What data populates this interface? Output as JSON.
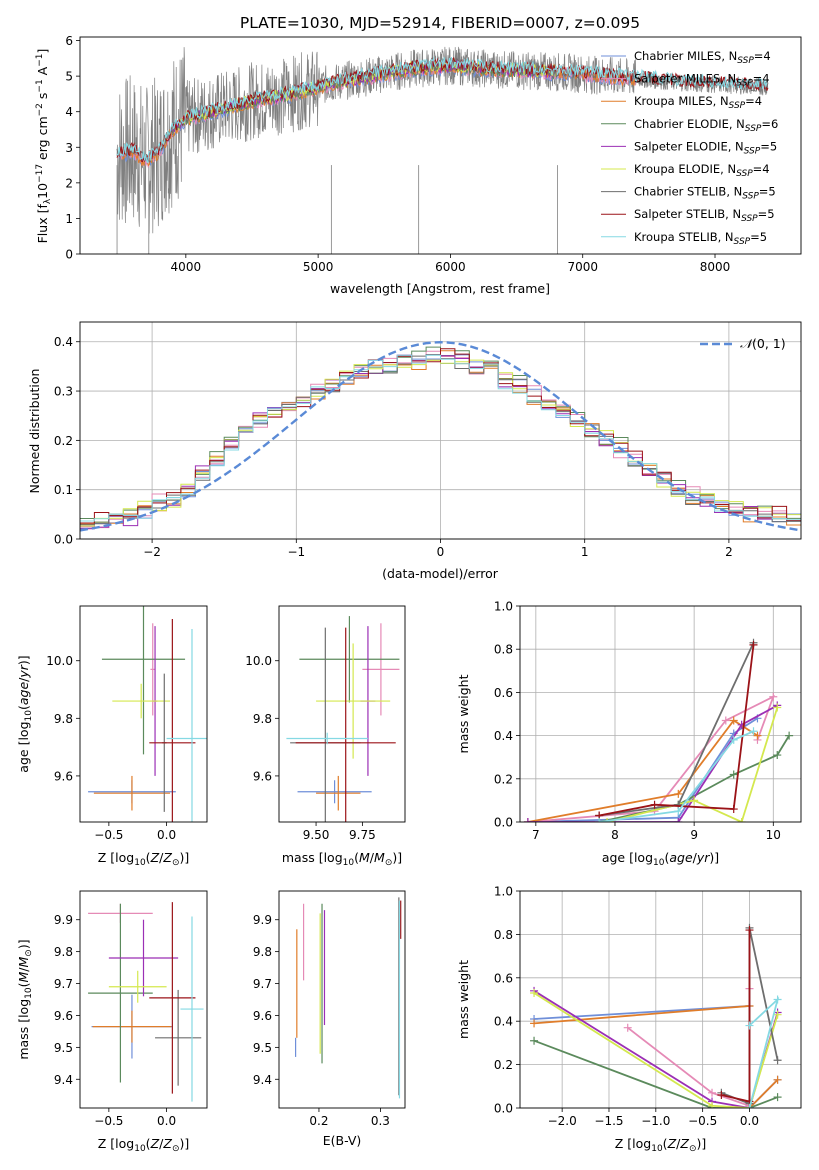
{
  "title": "PLATE=1030, MJD=52914, FIBERID=0007, z=0.095",
  "colors": {
    "Chabrier MILES": "#6f8fd9",
    "Salpeter MILES": "#e58ab6",
    "Kroupa MILES": "#e07d2a",
    "Chabrier ELODIE": "#5b8a5c",
    "Salpeter ELODIE": "#9b2fb5",
    "Kroupa ELODIE": "#d4e84e",
    "Chabrier STELIB": "#6e6e6e",
    "Salpeter STELIB": "#9b1318",
    "Kroupa STELIB": "#85d9e3",
    "data": "#808080",
    "normal_curve": "#5a8ad6"
  },
  "chart_data": [
    {
      "id": "spectrum",
      "type": "line",
      "xlabel": "wavelength [Angstrom, rest frame]",
      "ylabel": "Flux [f_λ10^-17 erg cm^-2 s^-1 A^-1]",
      "xlim": [
        3200,
        8650
      ],
      "ylim": [
        0,
        6.1
      ],
      "xticks": [
        4000,
        5000,
        6000,
        7000,
        8000
      ],
      "yticks": [
        0,
        1,
        2,
        3,
        4,
        5,
        6
      ],
      "grid": false,
      "legend": "right",
      "legend_entries": [
        {
          "name": "Chabrier MILES",
          "nssp": "4"
        },
        {
          "name": "Salpeter MILES",
          "nssp": "4"
        },
        {
          "name": "Kroupa MILES",
          "nssp": "4"
        },
        {
          "name": "Chabrier ELODIE",
          "nssp": "6"
        },
        {
          "name": "Salpeter ELODIE",
          "nssp": "5"
        },
        {
          "name": "Kroupa ELODIE",
          "nssp": "4"
        },
        {
          "name": "Chabrier STELIB",
          "nssp": "5"
        },
        {
          "name": "Salpeter STELIB",
          "nssp": "5"
        },
        {
          "name": "Kroupa STELIB",
          "nssp": "5"
        }
      ],
      "data_range": [
        3480,
        8400
      ],
      "miles_range": [
        3500,
        7410
      ],
      "elodie_range": [
        3900,
        6800
      ],
      "stelib_range": [
        3480,
        8400
      ],
      "continuum": [
        [
          3480,
          2.8
        ],
        [
          3600,
          2.9
        ],
        [
          3700,
          2.6
        ],
        [
          3800,
          2.9
        ],
        [
          3900,
          3.5
        ],
        [
          4000,
          3.8
        ],
        [
          4200,
          4.0
        ],
        [
          4500,
          4.3
        ],
        [
          4800,
          4.5
        ],
        [
          5100,
          4.8
        ],
        [
          5400,
          5.0
        ],
        [
          5700,
          5.2
        ],
        [
          6000,
          5.3
        ],
        [
          6300,
          5.2
        ],
        [
          6600,
          5.15
        ],
        [
          6900,
          5.1
        ],
        [
          7200,
          5.0
        ],
        [
          7500,
          4.9
        ],
        [
          7800,
          4.8
        ],
        [
          8100,
          4.75
        ],
        [
          8400,
          4.7
        ]
      ]
    },
    {
      "id": "residual-histogram",
      "type": "histogram",
      "xlabel": "(data-model)/error",
      "ylabel": "Normed distribution",
      "xlim": [
        -2.5,
        2.5
      ],
      "ylim": [
        0,
        0.44
      ],
      "xticks": [
        -2,
        -1,
        0,
        1,
        2
      ],
      "yticks": [
        0.0,
        0.1,
        0.2,
        0.3,
        0.4
      ],
      "grid": true,
      "legend": "top-right",
      "legend_label": "N(0,1)",
      "bin_edges": [
        -2.5,
        -2.4,
        -2.3,
        -2.2,
        -2.1,
        -2.0,
        -1.9,
        -1.8,
        -1.7,
        -1.6,
        -1.5,
        -1.4,
        -1.3,
        -1.2,
        -1.1,
        -1.0,
        -0.9,
        -0.8,
        -0.7,
        -0.6,
        -0.5,
        -0.4,
        -0.3,
        -0.2,
        -0.1,
        0.0,
        0.1,
        0.2,
        0.3,
        0.4,
        0.5,
        0.6,
        0.7,
        0.8,
        0.9,
        1.0,
        1.1,
        1.2,
        1.3,
        1.4,
        1.5,
        1.6,
        1.7,
        1.8,
        1.9,
        2.0,
        2.1,
        2.2,
        2.3,
        2.4,
        2.5
      ],
      "base_density": [
        0.03,
        0.035,
        0.04,
        0.05,
        0.06,
        0.07,
        0.08,
        0.1,
        0.13,
        0.16,
        0.19,
        0.22,
        0.24,
        0.26,
        0.27,
        0.28,
        0.3,
        0.31,
        0.33,
        0.34,
        0.35,
        0.35,
        0.36,
        0.36,
        0.37,
        0.37,
        0.36,
        0.35,
        0.34,
        0.32,
        0.31,
        0.29,
        0.28,
        0.26,
        0.24,
        0.22,
        0.2,
        0.18,
        0.16,
        0.14,
        0.12,
        0.1,
        0.085,
        0.075,
        0.065,
        0.06,
        0.055,
        0.05,
        0.045,
        0.04
      ],
      "series_offsets": [
        0.0,
        0.012,
        -0.01,
        0.018,
        -0.015,
        0.008,
        -0.006,
        0.015,
        -0.012
      ]
    },
    {
      "id": "age-vs-Z",
      "type": "errorbar",
      "xlabel": "Z [log10(Z/Z⊙)]",
      "ylabel": "age [log10(age/yr)]",
      "xlim": [
        -0.75,
        0.35
      ],
      "ylim": [
        9.44,
        10.19
      ],
      "xticks": [
        -0.5,
        0.0
      ],
      "yticks": [
        9.6,
        9.8,
        10.0
      ],
      "points": [
        {
          "series": "Chabrier MILES",
          "x": -0.3,
          "xerr": 0.38,
          "y": 9.545,
          "yerr": 0.04
        },
        {
          "series": "Salpeter MILES",
          "x": -0.12,
          "xerr": 0.02,
          "y": 9.97,
          "yerr": 0.16
        },
        {
          "series": "Kroupa MILES",
          "x": -0.3,
          "xerr": 0.33,
          "y": 9.54,
          "yerr": 0.06
        },
        {
          "series": "Chabrier ELODIE",
          "x": -0.2,
          "xerr": 0.36,
          "y": 10.005,
          "yerr": 0.33
        },
        {
          "series": "Salpeter ELODIE",
          "x": -0.1,
          "xerr": 0.02,
          "y": 9.86,
          "yerr": 0.26
        },
        {
          "series": "Kroupa ELODIE",
          "x": -0.22,
          "xerr": 0.25,
          "y": 9.86,
          "yerr": 0.06
        },
        {
          "series": "Chabrier STELIB",
          "x": -0.02,
          "xerr": 0.02,
          "y": 9.715,
          "yerr": 0.24
        },
        {
          "series": "Salpeter STELIB",
          "x": 0.05,
          "xerr": 0.2,
          "y": 9.715,
          "yerr": 0.43
        },
        {
          "series": "Kroupa STELIB",
          "x": 0.22,
          "xerr": 0.22,
          "y": 9.73,
          "yerr": 0.38
        }
      ]
    },
    {
      "id": "age-vs-mass",
      "type": "errorbar",
      "xlabel": "mass [log10(M/M⊙)]",
      "ylabel": "",
      "xlim": [
        9.3,
        9.98
      ],
      "ylim": [
        9.44,
        10.19
      ],
      "xticks": [
        9.5,
        9.75
      ],
      "yticks": [
        9.6,
        9.8,
        10.0
      ],
      "points": [
        {
          "series": "Chabrier MILES",
          "x": 9.6,
          "xerr": 0.2,
          "y": 9.545,
          "yerr": 0.04
        },
        {
          "series": "Salpeter MILES",
          "x": 9.85,
          "xerr": 0.1,
          "y": 9.97,
          "yerr": 0.16
        },
        {
          "series": "Kroupa MILES",
          "x": 9.62,
          "xerr": 0.12,
          "y": 9.54,
          "yerr": 0.06
        },
        {
          "series": "Chabrier ELODIE",
          "x": 9.68,
          "xerr": 0.27,
          "y": 10.005,
          "yerr": 0.15
        },
        {
          "series": "Salpeter ELODIE",
          "x": 9.78,
          "xerr": 0.04,
          "y": 9.86,
          "yerr": 0.26
        },
        {
          "series": "Kroupa ELODIE",
          "x": 9.7,
          "xerr": 0.2,
          "y": 9.86,
          "yerr": 0.2
        },
        {
          "series": "Chabrier STELIB",
          "x": 9.55,
          "xerr": 0.19,
          "y": 9.715,
          "yerr": 0.4
        },
        {
          "series": "Salpeter STELIB",
          "x": 9.66,
          "xerr": 0.27,
          "y": 9.715,
          "yerr": 0.4
        },
        {
          "series": "Kroupa STELIB",
          "x": 9.56,
          "xerr": 0.22,
          "y": 9.73,
          "yerr": 0.02
        }
      ]
    },
    {
      "id": "mass-weight-vs-age",
      "type": "line",
      "xlabel": "age [log10(age/yr)]",
      "ylabel": "mass weight",
      "xlim": [
        6.8,
        10.35
      ],
      "ylim": [
        0,
        1.0
      ],
      "xticks": [
        7,
        8,
        9,
        10
      ],
      "yticks": [
        0.0,
        0.2,
        0.4,
        0.6,
        0.8,
        1.0
      ],
      "grid": true,
      "series": [
        {
          "series": "Chabrier MILES",
          "points": [
            [
              6.9,
              0.0
            ],
            [
              8.8,
              0.02
            ],
            [
              9.5,
              0.41
            ],
            [
              9.8,
              0.48
            ]
          ]
        },
        {
          "series": "Salpeter MILES",
          "points": [
            [
              6.9,
              0.0
            ],
            [
              8.5,
              0.05
            ],
            [
              9.4,
              0.47
            ],
            [
              10.0,
              0.58
            ],
            [
              9.8,
              0.38
            ]
          ]
        },
        {
          "series": "Kroupa MILES",
          "points": [
            [
              6.9,
              0.0
            ],
            [
              8.8,
              0.13
            ],
            [
              9.5,
              0.47
            ],
            [
              9.8,
              0.4
            ]
          ]
        },
        {
          "series": "Chabrier ELODIE",
          "points": [
            [
              7.8,
              0.0
            ],
            [
              8.8,
              0.08
            ],
            [
              9.5,
              0.22
            ],
            [
              10.05,
              0.31
            ],
            [
              10.2,
              0.4
            ]
          ]
        },
        {
          "series": "Salpeter ELODIE",
          "points": [
            [
              6.9,
              0.0
            ],
            [
              8.8,
              0.0
            ],
            [
              9.6,
              0.45
            ],
            [
              10.05,
              0.54
            ]
          ]
        },
        {
          "series": "Kroupa ELODIE",
          "points": [
            [
              7.9,
              0.0
            ],
            [
              9.0,
              0.1
            ],
            [
              9.6,
              0.0
            ],
            [
              10.05,
              0.53
            ]
          ]
        },
        {
          "series": "Chabrier STELIB",
          "points": [
            [
              7.8,
              0.03
            ],
            [
              8.8,
              0.08
            ],
            [
              9.75,
              0.83
            ]
          ]
        },
        {
          "series": "Salpeter STELIB",
          "points": [
            [
              7.8,
              0.03
            ],
            [
              8.5,
              0.08
            ],
            [
              9.5,
              0.06
            ],
            [
              9.75,
              0.82
            ]
          ]
        },
        {
          "series": "Kroupa STELIB",
          "points": [
            [
              7.8,
              0.0
            ],
            [
              8.8,
              0.05
            ],
            [
              9.5,
              0.38
            ],
            [
              9.75,
              0.42
            ]
          ]
        }
      ]
    },
    {
      "id": "mass-vs-Z",
      "type": "errorbar",
      "xlabel": "Z [log10(Z/Z⊙)]",
      "ylabel": "mass [log10(M/M⊙)]",
      "xlim": [
        -0.75,
        0.35
      ],
      "ylim": [
        9.31,
        9.99
      ],
      "xticks": [
        -0.5,
        0.0
      ],
      "yticks": [
        9.4,
        9.5,
        9.6,
        9.7,
        9.8,
        9.9
      ],
      "points": [
        {
          "series": "Chabrier MILES",
          "x": -0.3,
          "xerr": 0.35,
          "y": 9.565,
          "yerr": 0.1
        },
        {
          "series": "Salpeter MILES",
          "x": -0.4,
          "xerr": 0.28,
          "y": 9.92,
          "yerr": 0.03
        },
        {
          "series": "Kroupa MILES",
          "x": -0.3,
          "xerr": 0.34,
          "y": 9.565,
          "yerr": 0.05
        },
        {
          "series": "Chabrier ELODIE",
          "x": -0.4,
          "xerr": 0.28,
          "y": 9.67,
          "yerr": 0.28
        },
        {
          "series": "Salpeter ELODIE",
          "x": -0.2,
          "xerr": 0.3,
          "y": 9.78,
          "yerr": 0.12
        },
        {
          "series": "Kroupa ELODIE",
          "x": -0.25,
          "xerr": 0.25,
          "y": 9.69,
          "yerr": 0.05
        },
        {
          "series": "Chabrier STELIB",
          "x": 0.1,
          "xerr": 0.2,
          "y": 9.53,
          "yerr": 0.15
        },
        {
          "series": "Salpeter STELIB",
          "x": 0.05,
          "xerr": 0.2,
          "y": 9.655,
          "yerr": 0.3
        },
        {
          "series": "Kroupa STELIB",
          "x": 0.22,
          "xerr": 0.1,
          "y": 9.62,
          "yerr": 0.29
        }
      ]
    },
    {
      "id": "mass-vs-EBV",
      "type": "errorbar",
      "xlabel": "E(B-V)",
      "ylabel": "",
      "xlim": [
        0.135,
        0.34
      ],
      "ylim": [
        9.31,
        9.99
      ],
      "xticks": [
        0.2,
        0.3
      ],
      "yticks": [
        9.4,
        9.5,
        9.6,
        9.7,
        9.8,
        9.9
      ],
      "points": [
        {
          "series": "Chabrier MILES",
          "x": 0.162,
          "xerr": 0.0,
          "y": 9.5,
          "yerr": 0.03
        },
        {
          "series": "Salpeter MILES",
          "x": 0.175,
          "xerr": 0.0,
          "y": 9.83,
          "yerr": 0.12
        },
        {
          "series": "Kroupa MILES",
          "x": 0.164,
          "xerr": 0.0,
          "y": 9.7,
          "yerr": 0.17
        },
        {
          "series": "Chabrier ELODIE",
          "x": 0.205,
          "xerr": 0.0,
          "y": 9.7,
          "yerr": 0.25
        },
        {
          "series": "Salpeter ELODIE",
          "x": 0.209,
          "xerr": 0.0,
          "y": 9.75,
          "yerr": 0.18
        },
        {
          "series": "Kroupa ELODIE",
          "x": 0.202,
          "xerr": 0.0,
          "y": 9.7,
          "yerr": 0.22
        },
        {
          "series": "Chabrier STELIB",
          "x": 0.33,
          "xerr": 0.0,
          "y": 9.66,
          "yerr": 0.31
        },
        {
          "series": "Salpeter STELIB",
          "x": 0.333,
          "xerr": 0.0,
          "y": 9.9,
          "yerr": 0.06
        },
        {
          "series": "Kroupa STELIB",
          "x": 0.331,
          "xerr": 0.0,
          "y": 9.65,
          "yerr": 0.31
        }
      ]
    },
    {
      "id": "mass-weight-vs-Z",
      "type": "line",
      "xlabel": "Z [log10(Z/Z⊙)]",
      "ylabel": "mass weight",
      "xlim": [
        -2.45,
        0.55
      ],
      "ylim": [
        0,
        1.0
      ],
      "xticks": [
        -2.0,
        -1.5,
        -1.0,
        -0.5,
        0.0
      ],
      "yticks": [
        0.0,
        0.2,
        0.4,
        0.6,
        0.8,
        1.0
      ],
      "grid": true,
      "series": [
        {
          "series": "Chabrier MILES",
          "points": [
            [
              -2.3,
              0.41
            ],
            [
              0.0,
              0.47
            ],
            [
              0.0,
              0.0
            ],
            [
              0.3,
              0.13
            ]
          ]
        },
        {
          "series": "Salpeter MILES",
          "points": [
            [
              -1.3,
              0.37
            ],
            [
              -0.4,
              0.07
            ],
            [
              0.0,
              0.01
            ],
            [
              0.0,
              0.55
            ]
          ]
        },
        {
          "series": "Kroupa MILES",
          "points": [
            [
              -2.3,
              0.39
            ],
            [
              0.0,
              0.47
            ],
            [
              0.0,
              0.0
            ],
            [
              0.3,
              0.13
            ]
          ]
        },
        {
          "series": "Chabrier ELODIE",
          "points": [
            [
              -2.3,
              0.31
            ],
            [
              -0.4,
              0.0
            ],
            [
              0.0,
              0.0
            ],
            [
              0.3,
              0.05
            ]
          ]
        },
        {
          "series": "Salpeter ELODIE",
          "points": [
            [
              -2.3,
              0.54
            ],
            [
              -0.4,
              0.03
            ],
            [
              0.0,
              0.0
            ],
            [
              0.3,
              0.44
            ]
          ]
        },
        {
          "series": "Kroupa ELODIE",
          "points": [
            [
              -2.3,
              0.53
            ],
            [
              -0.4,
              0.01
            ],
            [
              0.0,
              0.0
            ],
            [
              0.3,
              0.43
            ]
          ]
        },
        {
          "series": "Chabrier STELIB",
          "points": [
            [
              -0.3,
              0.07
            ],
            [
              0.0,
              0.02
            ],
            [
              0.0,
              0.83
            ],
            [
              0.3,
              0.22
            ]
          ]
        },
        {
          "series": "Salpeter STELIB",
          "points": [
            [
              -0.3,
              0.06
            ],
            [
              0.0,
              0.03
            ],
            [
              0.0,
              0.82
            ]
          ]
        },
        {
          "series": "Kroupa STELIB",
          "points": [
            [
              0.0,
              0.38
            ],
            [
              0.3,
              0.5
            ],
            [
              0.0,
              0.0
            ]
          ]
        }
      ]
    }
  ]
}
